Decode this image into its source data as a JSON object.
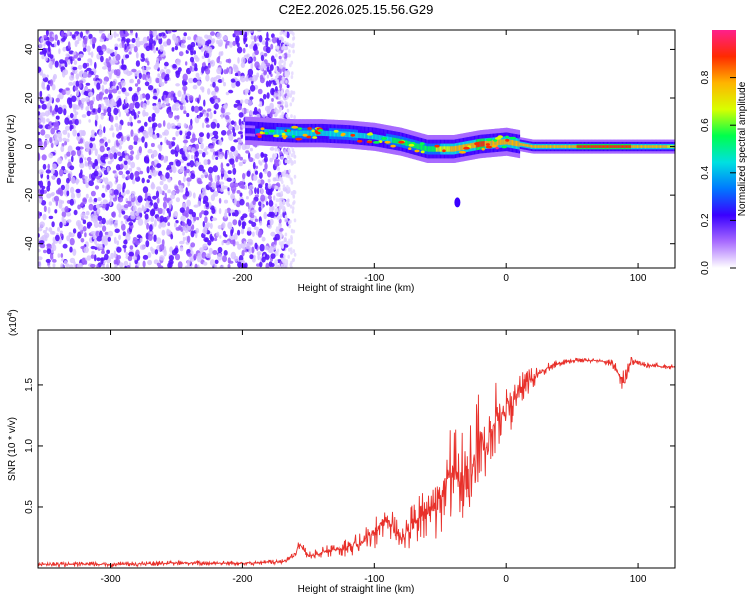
{
  "title": "C2E2.2026.025.15.56.G29",
  "chart_data": [
    {
      "type": "heatmap",
      "xlabel": "Height of straight line (km)",
      "ylabel": "Frequency (Hz)",
      "xlim": [
        -355,
        128
      ],
      "ylim": [
        -50,
        48
      ],
      "xticks": [
        -300,
        -200,
        -100,
        0,
        100
      ],
      "xtick_labels": [
        "-300",
        "-200",
        "-100",
        "0",
        "100"
      ],
      "yticks": [
        -40,
        -20,
        0,
        20,
        40
      ],
      "ytick_labels": [
        "-40",
        "-20",
        "0",
        "20",
        "40"
      ],
      "colorbar": {
        "label": "Normalized spectral amplitude",
        "range": [
          0,
          1
        ],
        "ticks": [
          0,
          0.2,
          0.4,
          0.6,
          0.8
        ],
        "tick_labels": [
          "0.0",
          "0.2",
          "0.4",
          "0.6",
          "0.8"
        ],
        "colormap": [
          "#ffffff",
          "#a86bff",
          "#3a00ff",
          "#0078ff",
          "#00e0e0",
          "#00ff4c",
          "#d8ff00",
          "#ffb400",
          "#ff2a00",
          "#ff1f8c"
        ]
      },
      "ridge": {
        "x": [
          -195,
          -180,
          -160,
          -140,
          -120,
          -100,
          -80,
          -60,
          -40,
          -20,
          0,
          20,
          60,
          90,
          128
        ],
        "y": [
          6.5,
          6,
          5.5,
          5.5,
          5,
          4,
          2,
          -1,
          -1,
          1,
          2,
          0,
          0,
          0,
          0
        ],
        "amplitude": [
          0.2,
          0.45,
          0.5,
          0.45,
          0.5,
          0.4,
          0.55,
          0.55,
          0.75,
          0.85,
          0.75,
          0.75,
          0.85,
          0.85,
          0.7
        ]
      },
      "isolated_echo": {
        "x": -37,
        "y": -23,
        "amplitude": 0.2
      },
      "noise_region_x": [
        -355,
        -165
      ]
    },
    {
      "type": "line",
      "xlabel": "Height of straight line (km)",
      "ylabel": "SNR (10 * v/v)",
      "y_multiplier": "(x10",
      "y_multiplier_exp": "4",
      "y_multiplier_close": ")",
      "xlim": [
        -355,
        128
      ],
      "ylim": [
        0,
        1.95
      ],
      "xticks": [
        -300,
        -200,
        -100,
        0,
        100
      ],
      "xtick_labels": [
        "-300",
        "-200",
        "-100",
        "0",
        "100"
      ],
      "yticks": [
        0.5,
        1.0,
        1.5
      ],
      "ytick_labels": [
        "0.5",
        "1.0",
        "1.5"
      ],
      "color": "#e8302a",
      "series": [
        {
          "x": [
            -355,
            -300,
            -250,
            -200,
            -170,
            -160,
            -157,
            -150,
            -130,
            -110,
            -100,
            -90,
            -80,
            -70,
            -60,
            -50,
            -45,
            -40,
            -35,
            -30,
            -25,
            -20,
            -15,
            -10,
            -5,
            0,
            5,
            10,
            15,
            20,
            25,
            30,
            35,
            40,
            50,
            60,
            70,
            80,
            85,
            90,
            92,
            95,
            100,
            110,
            120,
            128
          ],
          "y": [
            0.03,
            0.03,
            0.04,
            0.04,
            0.05,
            0.1,
            0.2,
            0.1,
            0.15,
            0.2,
            0.3,
            0.4,
            0.25,
            0.35,
            0.45,
            0.55,
            0.75,
            0.8,
            0.7,
            0.9,
            0.85,
            1.1,
            0.95,
            1.2,
            1.25,
            1.3,
            1.35,
            1.45,
            1.5,
            1.55,
            1.6,
            1.63,
            1.66,
            1.68,
            1.7,
            1.7,
            1.7,
            1.68,
            1.6,
            1.5,
            1.6,
            1.7,
            1.67,
            1.66,
            1.65,
            1.65
          ],
          "noise": [
            0.02,
            0.02,
            0.02,
            0.02,
            0.02,
            0.03,
            0.06,
            0.03,
            0.06,
            0.1,
            0.15,
            0.15,
            0.1,
            0.2,
            0.25,
            0.3,
            0.35,
            0.4,
            0.35,
            0.4,
            0.35,
            0.4,
            0.4,
            0.35,
            0.3,
            0.25,
            0.2,
            0.15,
            0.12,
            0.1,
            0.06,
            0.05,
            0.04,
            0.03,
            0.02,
            0.02,
            0.02,
            0.03,
            0.06,
            0.12,
            0.1,
            0.06,
            0.03,
            0.02,
            0.02,
            0.02
          ]
        }
      ]
    }
  ]
}
